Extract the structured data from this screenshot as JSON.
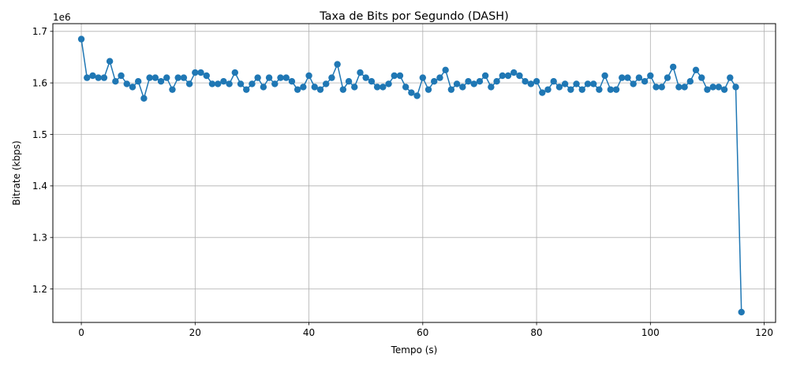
{
  "chart_data": {
    "type": "line",
    "title": "Taxa de Bits por Segundo (DASH)",
    "xlabel": "Tempo (s)",
    "ylabel": "Bitrate (kbps)",
    "offset_text": "1e6",
    "xlim": [
      -5,
      122
    ],
    "ylim": [
      1135000,
      1715000
    ],
    "x_ticks": [
      0,
      20,
      40,
      60,
      80,
      100,
      120
    ],
    "y_ticks": [
      1200000,
      1300000,
      1400000,
      1500000,
      1600000,
      1700000
    ],
    "y_tick_labels": [
      "1.2",
      "1.3",
      "1.4",
      "1.5",
      "1.6",
      "1.7"
    ],
    "grid": true,
    "markers": "circle",
    "series_color": "#1f77b4",
    "series": [
      {
        "x": [
          0,
          1,
          2,
          3,
          4,
          5,
          6,
          7,
          8,
          9,
          10,
          11,
          12,
          13,
          14,
          15,
          16,
          17,
          18,
          19,
          20,
          21,
          22,
          23,
          24,
          25,
          26,
          27,
          28,
          29,
          30,
          31,
          32,
          33,
          34,
          35,
          36,
          37,
          38,
          39,
          40,
          41,
          42,
          43,
          44,
          45,
          46,
          47,
          48,
          49,
          50,
          51,
          52,
          53,
          54,
          55,
          56,
          57,
          58,
          59,
          60,
          61,
          62,
          63,
          64,
          65,
          66,
          67,
          68,
          69,
          70,
          71,
          72,
          73,
          74,
          75,
          76,
          77,
          78,
          79,
          80,
          81,
          82,
          83,
          84,
          85,
          86,
          87,
          88,
          89,
          90,
          91,
          92,
          93,
          94,
          95,
          96,
          97,
          98,
          99,
          100,
          101,
          102,
          103,
          104,
          105,
          106,
          107,
          108,
          109,
          110,
          111,
          112,
          113,
          114,
          115,
          116
        ],
        "values": [
          1685000,
          1610000,
          1614000,
          1610000,
          1610000,
          1642000,
          1603000,
          1614000,
          1598000,
          1592000,
          1603000,
          1570000,
          1610000,
          1610000,
          1603000,
          1610000,
          1587000,
          1610000,
          1610000,
          1598000,
          1620000,
          1620000,
          1614000,
          1598000,
          1598000,
          1603000,
          1598000,
          1620000,
          1598000,
          1587000,
          1598000,
          1610000,
          1592000,
          1610000,
          1598000,
          1610000,
          1610000,
          1603000,
          1587000,
          1592000,
          1614000,
          1592000,
          1587000,
          1598000,
          1610000,
          1636000,
          1587000,
          1603000,
          1592000,
          1620000,
          1610000,
          1603000,
          1592000,
          1592000,
          1598000,
          1614000,
          1614000,
          1592000,
          1581000,
          1575000,
          1610000,
          1587000,
          1603000,
          1610000,
          1625000,
          1587000,
          1598000,
          1592000,
          1603000,
          1598000,
          1603000,
          1614000,
          1592000,
          1603000,
          1614000,
          1614000,
          1620000,
          1614000,
          1603000,
          1598000,
          1603000,
          1581000,
          1587000,
          1603000,
          1592000,
          1598000,
          1587000,
          1598000,
          1587000,
          1598000,
          1598000,
          1587000,
          1614000,
          1587000,
          1587000,
          1610000,
          1610000,
          1598000,
          1610000,
          1603000,
          1614000,
          1592000,
          1592000,
          1610000,
          1631000,
          1592000,
          1592000,
          1603000,
          1625000,
          1610000,
          1587000,
          1592000,
          1592000,
          1587000,
          1610000,
          1592000,
          1155000
        ]
      }
    ]
  }
}
